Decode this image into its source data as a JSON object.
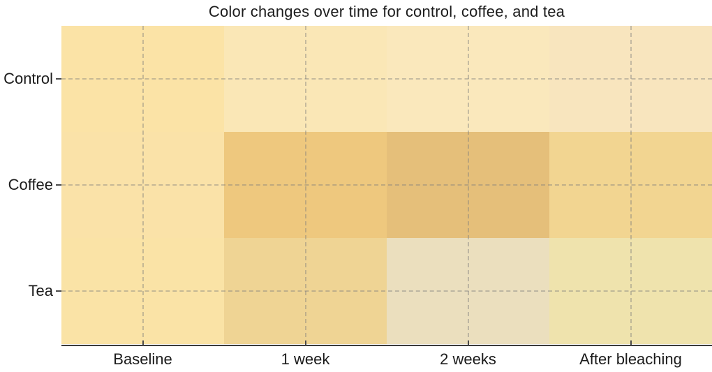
{
  "title": "Color changes over time for control, coffee, and tea",
  "chart_data": {
    "type": "heatmap",
    "title": "Color changes over time for control, coffee, and tea",
    "x_categories": [
      "Baseline",
      "1 week",
      "2 weeks",
      "After bleaching"
    ],
    "y_categories": [
      "Control",
      "Coffee",
      "Tea"
    ],
    "cell_colors": [
      [
        "#FBE3A6",
        "#FAE7B6",
        "#FAE8BC",
        "#F8E5BE"
      ],
      [
        "#FAE2A8",
        "#EEC87E",
        "#E5BF7A",
        "#F2D591"
      ],
      [
        "#FAE3A6",
        "#EFD494",
        "#EBDFBE",
        "#EFE3AD"
      ]
    ],
    "xlabel": "",
    "ylabel": "",
    "legend": "none",
    "grid": "dashed lines at row and column centers",
    "gridline_color": "rgba(125,125,125,0.42)",
    "axis_line_color": "#3b3b3b",
    "tick_color": "#4a4a4a",
    "text_color": "#1c1c1c"
  }
}
